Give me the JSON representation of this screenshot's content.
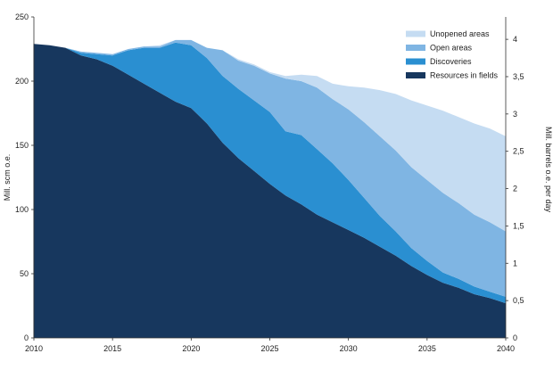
{
  "chart_data": {
    "type": "area",
    "stacked": true,
    "xlabel": "",
    "ylabel": "Mill. scm o.e.",
    "y2label": "Mill. barrels o.e. per day",
    "xlim": [
      2010,
      2040
    ],
    "ylim": [
      0,
      250
    ],
    "y2lim": [
      0,
      4.3
    ],
    "x_ticks": [
      "2010",
      "2015",
      "2020",
      "2025",
      "2030",
      "2035",
      "2040"
    ],
    "y_ticks": [
      "0",
      "50",
      "100",
      "150",
      "200",
      "250"
    ],
    "y2_ticks": [
      "0",
      "0,5",
      "1",
      "1,5",
      "2",
      "2,5",
      "3",
      "3,5",
      "4"
    ],
    "y2_tick_values": [
      0,
      0.5,
      1,
      1.5,
      2,
      2.5,
      3,
      3.5,
      4
    ],
    "grid": false,
    "legend_position": "top-right",
    "x": [
      2010,
      2011,
      2012,
      2013,
      2014,
      2015,
      2016,
      2017,
      2018,
      2019,
      2020,
      2021,
      2022,
      2023,
      2024,
      2025,
      2026,
      2027,
      2028,
      2029,
      2030,
      2031,
      2032,
      2033,
      2034,
      2035,
      2036,
      2037,
      2038,
      2039,
      2040
    ],
    "series": [
      {
        "name": "Resources in fields",
        "color": "#17375e",
        "values": [
          229,
          228,
          226,
          220,
          217,
          212,
          205,
          198,
          191,
          184,
          179,
          167,
          152,
          140,
          130,
          120,
          111,
          104,
          96,
          90,
          84,
          78,
          71,
          64,
          56,
          49,
          43,
          39,
          34,
          31,
          27
        ]
      },
      {
        "name": "Discoveries",
        "color": "#2a8fd1",
        "values": [
          0,
          0,
          0,
          2,
          4,
          8,
          19,
          28,
          35,
          46,
          49,
          51,
          52,
          54,
          55,
          56,
          50,
          54,
          51,
          46,
          39,
          31,
          24,
          19,
          14,
          11,
          8,
          7,
          6,
          5,
          5
        ]
      },
      {
        "name": "Open areas",
        "color": "#7fb5e3",
        "values": [
          0,
          0,
          0,
          1,
          1,
          1,
          1,
          1,
          1,
          2,
          4,
          8,
          20,
          22,
          27,
          30,
          41,
          42,
          48,
          50,
          55,
          59,
          62,
          63,
          63,
          63,
          62,
          59,
          56,
          54,
          51
        ]
      },
      {
        "name": "Unopened areas",
        "color": "#c5dcf2",
        "values": [
          0,
          0,
          0,
          0,
          0,
          0,
          0,
          0,
          1,
          0,
          0,
          0,
          0,
          1,
          1,
          1,
          2,
          5,
          9,
          12,
          18,
          27,
          36,
          44,
          52,
          58,
          64,
          67,
          71,
          73,
          74
        ]
      }
    ]
  }
}
